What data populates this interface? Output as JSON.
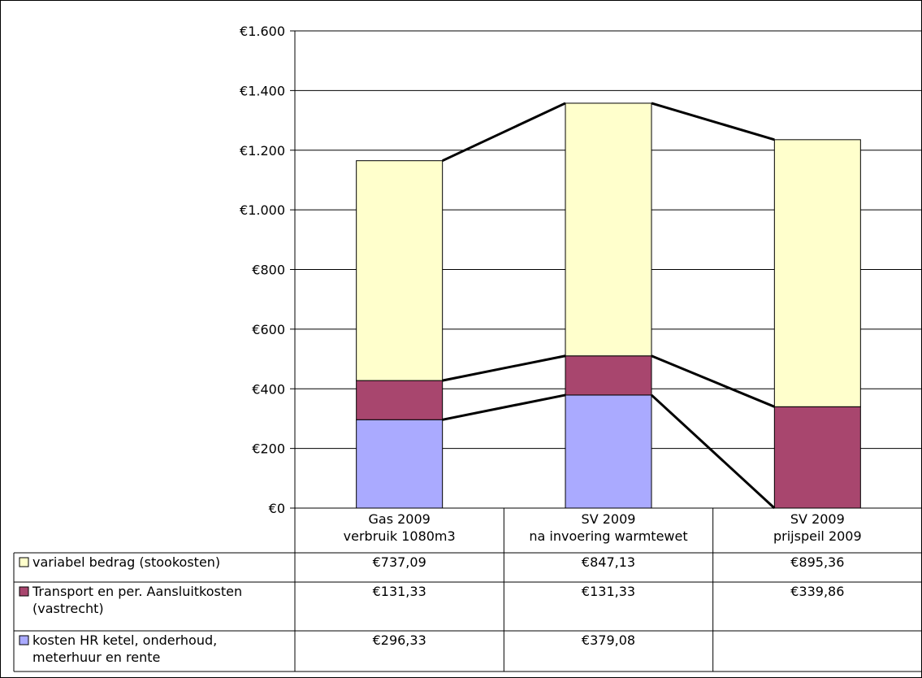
{
  "chart_data": {
    "type": "bar",
    "stacked": true,
    "categories": [
      [
        "Gas 2009",
        "verbruik 1080m3"
      ],
      [
        "SV 2009",
        "na invoering warmtewet"
      ],
      [
        "SV 2009",
        "prijspeil 2009"
      ]
    ],
    "series": [
      {
        "name_lines": [
          "kosten HR ketel, onderhoud,",
          "meterhuur en rente"
        ],
        "values": [
          296.33,
          379.08,
          0
        ],
        "labels": [
          "€296,33",
          "€379,08",
          ""
        ],
        "color": "#aaaaff"
      },
      {
        "name_lines": [
          "Transport en per. Aansluitkosten",
          "(vastrecht)"
        ],
        "values": [
          131.33,
          131.33,
          339.86
        ],
        "labels": [
          "€131,33",
          "€131,33",
          "€339,86"
        ],
        "color": "#a8466e"
      },
      {
        "name_lines": [
          "variabel bedrag (stookosten)"
        ],
        "values": [
          737.09,
          847.13,
          895.36
        ],
        "labels": [
          "€737,09",
          "€847,13",
          "€895,36"
        ],
        "color": "#ffffcc"
      }
    ],
    "ylim": [
      0,
      1600
    ],
    "yticks": [
      0,
      200,
      400,
      600,
      800,
      1000,
      1200,
      1400,
      1600
    ],
    "ytick_labels": [
      "€0",
      "€200",
      "€400",
      "€600",
      "€800",
      "€1.000",
      "€1.200",
      "€1.400",
      "€1.600"
    ],
    "grid": true,
    "series_lines": true,
    "data_table": true
  }
}
